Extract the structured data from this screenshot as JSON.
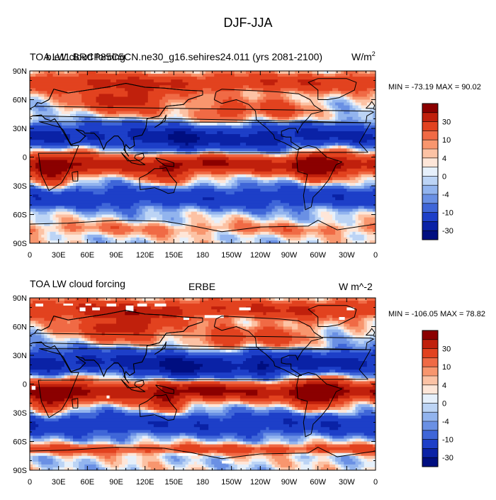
{
  "page_title": "DJF-JJA",
  "chart_data": [
    {
      "type": "heatmap",
      "title": "TOA LW cloud forcing",
      "subtitle": "b.e11.BRCP85C5CN.ne30_g16.sehires24.011 (yrs 2081-2100)",
      "units": "W/m",
      "units_superscript": "2",
      "min_max_text": "MIN = -73.19 MAX =  90.02",
      "min": -73.19,
      "max": 90.02,
      "xlabels": [
        "0",
        "30E",
        "60E",
        "90E",
        "120E",
        "150E",
        "180",
        "150W",
        "120W",
        "90W",
        "60W",
        "30W",
        "0"
      ],
      "xvalues": [
        0,
        30,
        60,
        90,
        120,
        150,
        180,
        210,
        240,
        270,
        300,
        330,
        360
      ],
      "xlim": [
        0,
        360
      ],
      "ylabels": [
        "90N",
        "60N",
        "30N",
        "0",
        "30S",
        "60S",
        "90S"
      ],
      "yvalues": [
        90,
        60,
        30,
        0,
        -30,
        -60,
        -90
      ],
      "ylim": [
        -90,
        90
      ],
      "colorbar_labels": [
        "30",
        "10",
        "4",
        "0",
        "-4",
        "-10",
        "-30"
      ]
    },
    {
      "type": "heatmap",
      "title": "TOA LW cloud forcing",
      "subtitle": "ERBE",
      "units": "W m^-2",
      "min_max_text": "MIN = -106.05 MAX =  78.82",
      "min": -106.05,
      "max": 78.82,
      "xlabels": [
        "0",
        "30E",
        "60E",
        "90E",
        "120E",
        "150E",
        "180",
        "150W",
        "120W",
        "90W",
        "60W",
        "30W",
        "0"
      ],
      "xvalues": [
        0,
        30,
        60,
        90,
        120,
        150,
        180,
        210,
        240,
        270,
        300,
        330,
        360
      ],
      "xlim": [
        0,
        360
      ],
      "ylabels": [
        "90N",
        "60N",
        "30N",
        "0",
        "30S",
        "60S",
        "90S"
      ],
      "yvalues": [
        90,
        60,
        30,
        0,
        -30,
        -60,
        -90
      ],
      "ylim": [
        -90,
        90
      ],
      "colorbar_labels": [
        "30",
        "10",
        "4",
        "0",
        "-4",
        "-10",
        "-30"
      ]
    }
  ],
  "colorbar_colors": [
    "#8b0000",
    "#c0200c",
    "#e2421f",
    "#f06a45",
    "#f8966e",
    "#fcc2a4",
    "#fee6d8",
    "#e6f0fb",
    "#bcd4f5",
    "#92b4ee",
    "#6a90e4",
    "#3f66d8",
    "#1d3fc8",
    "#0a22a6",
    "#000e80"
  ]
}
